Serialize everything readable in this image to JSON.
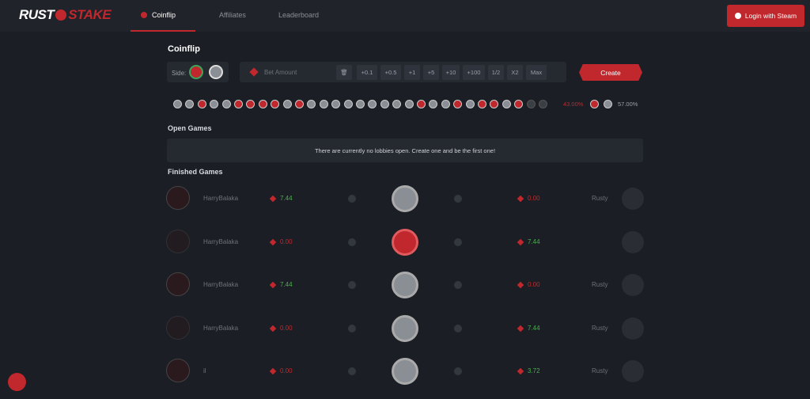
{
  "header": {
    "logo_left": "RUST",
    "logo_right": "STAKE",
    "nav": [
      "Coinflip",
      "Affiliates",
      "Leaderboard"
    ],
    "login": "Login with Steam"
  },
  "coinflip": {
    "title": "Coinflip",
    "side_label": "Side:",
    "bet_placeholder": "Bet Amount",
    "quick_buttons": [
      "+0.1",
      "+0.5",
      "+1",
      "+5",
      "+10",
      "+100",
      "1/2",
      "X2",
      "Max"
    ],
    "create": "Create",
    "history": [
      "gray",
      "gray",
      "red",
      "gray",
      "gray",
      "red",
      "red",
      "red",
      "red",
      "gray",
      "red",
      "gray",
      "gray",
      "gray",
      "gray",
      "gray",
      "gray",
      "gray",
      "gray",
      "gray",
      "red",
      "gray",
      "gray",
      "red",
      "gray",
      "red",
      "red",
      "gray",
      "red",
      "dark",
      "dark"
    ],
    "red_percent": "43.00%",
    "gray_percent": "57.00%"
  },
  "open_games": {
    "title": "Open Games",
    "empty": "There are currently no lobbies open. Create one and be the first one!"
  },
  "finished_games": {
    "title": "Finished Games",
    "rows": [
      {
        "left_name": "HarryBalaka",
        "left_amount": "7.44",
        "coin": "gray",
        "right_amount": "0.00",
        "right_name": "Rusty"
      },
      {
        "left_name": "HarryBalaka",
        "left_amount": "0.00",
        "coin": "red",
        "right_amount": "7.44",
        "right_name": ""
      },
      {
        "left_name": "HarryBalaka",
        "left_amount": "7.44",
        "coin": "gray",
        "right_amount": "0.00",
        "right_name": "Rusty"
      },
      {
        "left_name": "HarryBalaka",
        "left_amount": "0.00",
        "coin": "gray",
        "right_amount": "7.44",
        "right_name": "Rusty"
      },
      {
        "left_name": "il",
        "left_amount": "0.00",
        "coin": "gray",
        "right_amount": "3.72",
        "right_name": "Rusty"
      }
    ]
  }
}
